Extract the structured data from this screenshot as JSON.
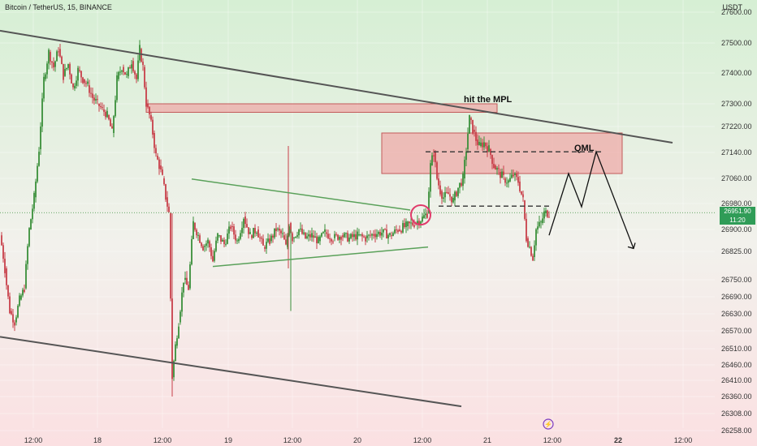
{
  "header": {
    "title": "Bitcoin / TetherUS, 15, BINANCE",
    "currency": "USDT"
  },
  "price_tag": {
    "price": "26951.90",
    "countdown": "11:20",
    "color": "#2f9c57"
  },
  "colors": {
    "up": "#3a8f3a",
    "down": "#c8404a",
    "trendline": "#555555",
    "triangle": "#5aa15a",
    "zone_fill": "#f0a0a0",
    "zone_stroke": "#c35a5a",
    "circle": "#e03a6a",
    "bg_top": "#d4efd2",
    "bg_bottom": "#fbe1e3"
  },
  "annotations": {
    "mpl_label": "hit the MPL",
    "qml_label": "QML"
  },
  "chart_data": {
    "type": "candlestick",
    "title": "Bitcoin / TetherUS, 15, BINANCE",
    "ylabel": "USDT",
    "ylim": [
      26258,
      27550
    ],
    "y_ticks": [
      "26258.00",
      "26308.00",
      "26360.00",
      "26410.00",
      "26460.00",
      "26510.00",
      "26570.00",
      "26630.00",
      "26690.00",
      "26750.00",
      "26825.00",
      "26900.00",
      "26980.00",
      "27060.00",
      "27140.00",
      "27220.00",
      "27300.00",
      "27400.00",
      "27500.00",
      "27600.00"
    ],
    "x_ticks": [
      "12:00",
      "18",
      "12:00",
      "19",
      "12:00",
      "20",
      "12:00",
      "21",
      "12:00",
      "22",
      "12:00"
    ],
    "x_ticks_bold": [
      "22"
    ],
    "last_price": 26951.9,
    "price_path": [
      [
        0,
        26880
      ],
      [
        6,
        26780
      ],
      [
        12,
        26640
      ],
      [
        18,
        26600
      ],
      [
        24,
        26680
      ],
      [
        30,
        26720
      ],
      [
        36,
        26900
      ],
      [
        42,
        27000
      ],
      [
        48,
        27150
      ],
      [
        54,
        27380
      ],
      [
        60,
        27470
      ],
      [
        66,
        27420
      ],
      [
        72,
        27480
      ],
      [
        78,
        27390
      ],
      [
        84,
        27430
      ],
      [
        90,
        27350
      ],
      [
        96,
        27410
      ],
      [
        102,
        27380
      ],
      [
        108,
        27360
      ],
      [
        114,
        27320
      ],
      [
        120,
        27300
      ],
      [
        126,
        27280
      ],
      [
        132,
        27260
      ],
      [
        138,
        27200
      ],
      [
        144,
        27380
      ],
      [
        150,
        27420
      ],
      [
        156,
        27390
      ],
      [
        162,
        27440
      ],
      [
        168,
        27380
      ],
      [
        172,
        27480
      ],
      [
        176,
        27420
      ],
      [
        180,
        27300
      ],
      [
        184,
        27260
      ],
      [
        188,
        27200
      ],
      [
        192,
        27130
      ],
      [
        196,
        27100
      ],
      [
        200,
        27060
      ],
      [
        204,
        27000
      ],
      [
        208,
        26950
      ],
      [
        212,
        26420
      ],
      [
        216,
        26520
      ],
      [
        220,
        26600
      ],
      [
        226,
        26750
      ],
      [
        232,
        26720
      ],
      [
        238,
        26920
      ],
      [
        244,
        26880
      ],
      [
        250,
        26840
      ],
      [
        256,
        26860
      ],
      [
        262,
        26800
      ],
      [
        268,
        26880
      ],
      [
        276,
        26850
      ],
      [
        284,
        26910
      ],
      [
        292,
        26860
      ],
      [
        300,
        26940
      ],
      [
        308,
        26880
      ],
      [
        316,
        26900
      ],
      [
        324,
        26840
      ],
      [
        332,
        26860
      ],
      [
        340,
        26900
      ],
      [
        348,
        26880
      ],
      [
        352,
        26840
      ],
      [
        356,
        26920
      ],
      [
        360,
        26870
      ],
      [
        368,
        26900
      ],
      [
        376,
        26870
      ],
      [
        384,
        26880
      ],
      [
        392,
        26860
      ],
      [
        400,
        26890
      ],
      [
        410,
        26870
      ],
      [
        420,
        26880
      ],
      [
        430,
        26870
      ],
      [
        440,
        26880
      ],
      [
        450,
        26870
      ],
      [
        460,
        26885
      ],
      [
        470,
        26890
      ],
      [
        480,
        26880
      ],
      [
        490,
        26900
      ],
      [
        500,
        26910
      ],
      [
        510,
        26920
      ],
      [
        520,
        26935
      ],
      [
        526,
        26950
      ],
      [
        530,
        27100
      ],
      [
        534,
        27140
      ],
      [
        538,
        27060
      ],
      [
        542,
        27020
      ],
      [
        546,
        27000
      ],
      [
        552,
        27010
      ],
      [
        558,
        26990
      ],
      [
        564,
        27030
      ],
      [
        570,
        27060
      ],
      [
        574,
        27150
      ],
      [
        578,
        27250
      ],
      [
        582,
        27210
      ],
      [
        586,
        27180
      ],
      [
        590,
        27160
      ],
      [
        596,
        27170
      ],
      [
        602,
        27150
      ],
      [
        608,
        27100
      ],
      [
        614,
        27080
      ],
      [
        620,
        27060
      ],
      [
        626,
        27050
      ],
      [
        632,
        27070
      ],
      [
        638,
        27050
      ],
      [
        644,
        26990
      ],
      [
        648,
        26870
      ],
      [
        652,
        26840
      ],
      [
        656,
        26810
      ],
      [
        660,
        26900
      ],
      [
        666,
        26920
      ],
      [
        670,
        26950
      ],
      [
        676,
        26952
      ]
    ],
    "lines": {
      "upper_trend": [
        [
          0,
          27540
        ],
        [
          828,
          27170
        ]
      ],
      "lower_trend": [
        [
          0,
          26550
        ],
        [
          568,
          26330
        ]
      ],
      "triangle_upper": [
        [
          236,
          27058
        ],
        [
          505,
          26960
        ]
      ],
      "triangle_lower": [
        [
          262,
          26785
        ],
        [
          527,
          26840
        ]
      ],
      "mpl_zone": [
        [
          180,
          27300
        ],
        [
          612,
          27270
        ]
      ],
      "qml_zone": [
        [
          470,
          27200
        ],
        [
          766,
          27075
        ]
      ],
      "qml_dash": [
        [
          524,
          27142
        ],
        [
          740,
          27142
        ]
      ],
      "lower_dash": [
        [
          540,
          26972
        ],
        [
          680,
          26972
        ]
      ],
      "projection": [
        [
          676,
          26880
        ],
        [
          700,
          27075
        ],
        [
          716,
          26970
        ],
        [
          734,
          27142
        ],
        [
          780,
          26835
        ]
      ]
    }
  }
}
